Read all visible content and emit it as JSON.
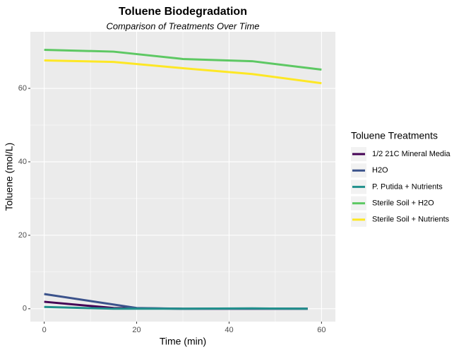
{
  "chart_data": {
    "type": "line",
    "title": "Toluene Biodegradation",
    "subtitle": "Comparison of Treatments Over Time",
    "x_label": "Time (min)",
    "y_label": "Toluene (mol/L)",
    "legend_title": "Toluene Treatments",
    "xlim": [
      -3,
      63
    ],
    "xticks": [
      0,
      20,
      40,
      60
    ],
    "ylim": [
      -3.5,
      75.4
    ],
    "yticks": [
      0,
      20,
      40,
      60
    ],
    "grid": true,
    "legend": "right",
    "series": [
      {
        "name": "1/2 21C Mineral Media",
        "color": "#440154",
        "x": [
          0,
          15,
          30,
          45,
          57
        ],
        "values": [
          1.9,
          0.2,
          0,
          0,
          0
        ]
      },
      {
        "name": "H2O",
        "color": "#3b528b",
        "x": [
          0,
          20,
          30,
          45,
          57
        ],
        "values": [
          4.0,
          0.2,
          0,
          0,
          0
        ]
      },
      {
        "name": "P. Putida + Nutrients",
        "color": "#21908c",
        "x": [
          0,
          15,
          30,
          45,
          57
        ],
        "values": [
          0.5,
          0,
          0,
          0.1,
          0
        ]
      },
      {
        "name": "Sterile Soil + H2O",
        "color": "#5dc863",
        "x": [
          0,
          15,
          30,
          45,
          60
        ],
        "values": [
          70.5,
          70.0,
          68.0,
          67.4,
          65.1
        ]
      },
      {
        "name": "Sterile Soil + Nutrients",
        "color": "#fde725",
        "x": [
          0,
          15,
          30,
          45,
          60
        ],
        "values": [
          67.6,
          67.2,
          65.5,
          63.9,
          61.4
        ]
      }
    ]
  }
}
